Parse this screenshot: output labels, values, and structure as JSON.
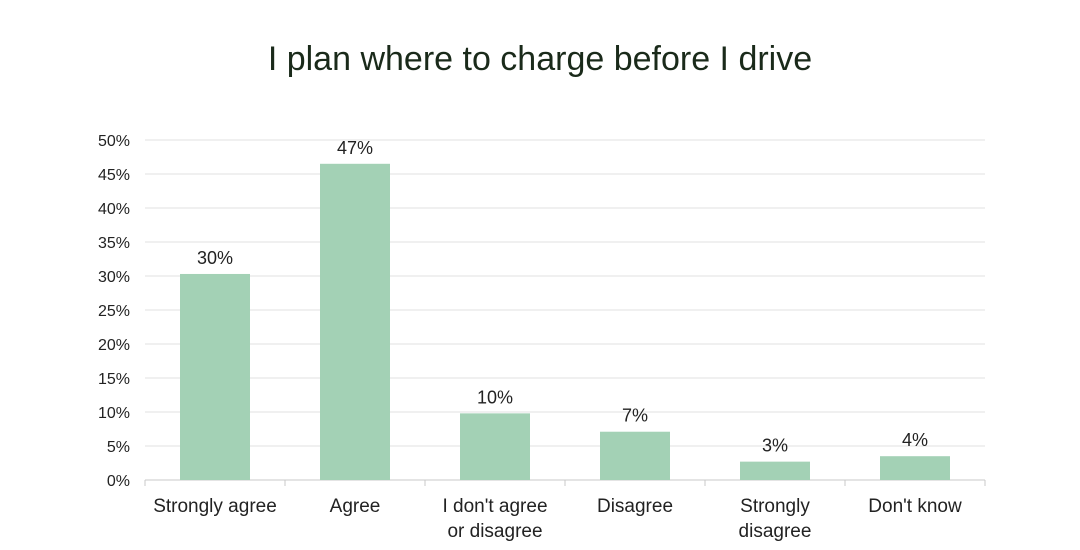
{
  "chart_data": {
    "type": "bar",
    "title": "I plan where to charge before I drive",
    "categories": [
      [
        "Strongly agree"
      ],
      [
        "Agree"
      ],
      [
        "I don't agree",
        "or disagree"
      ],
      [
        "Disagree"
      ],
      [
        "Strongly",
        "disagree"
      ],
      [
        "Don't know"
      ]
    ],
    "values": [
      30.3,
      46.5,
      9.8,
      7.1,
      2.7,
      3.5
    ],
    "data_labels": [
      "30%",
      "47%",
      "10%",
      "7%",
      "3%",
      "4%"
    ],
    "y_ticks": [
      "0%",
      "5%",
      "10%",
      "15%",
      "20%",
      "25%",
      "30%",
      "35%",
      "40%",
      "45%",
      "50%"
    ],
    "ylim": [
      0,
      50
    ],
    "xlabel": "",
    "ylabel": "",
    "grid": true,
    "legend": "none",
    "colors": {
      "bar": "#a3d1b5",
      "grid": "#e0e0e0",
      "axis": "#c8c8c8"
    }
  }
}
